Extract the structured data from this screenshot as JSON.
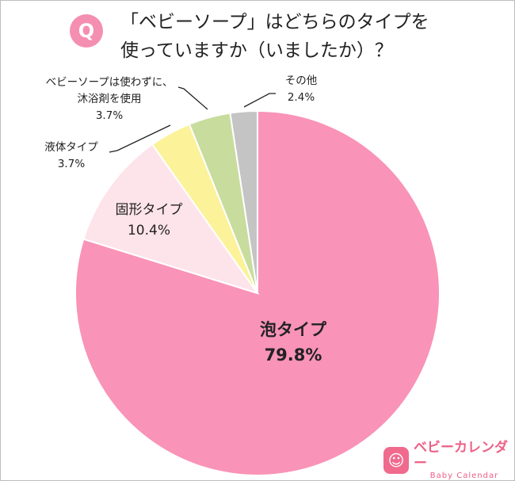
{
  "question": {
    "badge": "Q",
    "line1": "「ベビーソープ」はどちらのタイプを",
    "line2": "使っていますか（いましたか）？"
  },
  "chart_data": {
    "type": "pie",
    "title": "「ベビーソープ」はどちらのタイプを使っていますか（いましたか）？",
    "slices": [
      {
        "label": [
          "泡タイプ"
        ],
        "value": 79.8,
        "value_label": "79.8%",
        "color": "#f993b7"
      },
      {
        "label": [
          "固形タイプ"
        ],
        "value": 10.4,
        "value_label": "10.4%",
        "color": "#fde3ea"
      },
      {
        "label": [
          "液体タイプ"
        ],
        "value": 3.7,
        "value_label": "3.7%",
        "color": "#fbf29a"
      },
      {
        "label": [
          "ベビーソープは使わずに、",
          "沐浴剤を使用"
        ],
        "value": 3.7,
        "value_label": "3.7%",
        "color": "#c8dc9e"
      },
      {
        "label": [
          "その他"
        ],
        "value": 2.4,
        "value_label": "2.4%",
        "color": "#c4c4c4"
      }
    ]
  },
  "logo": {
    "icon": "baby-calendar-logo-icon",
    "name": "ベビーカレンダー",
    "sub": "Baby Calendar"
  }
}
